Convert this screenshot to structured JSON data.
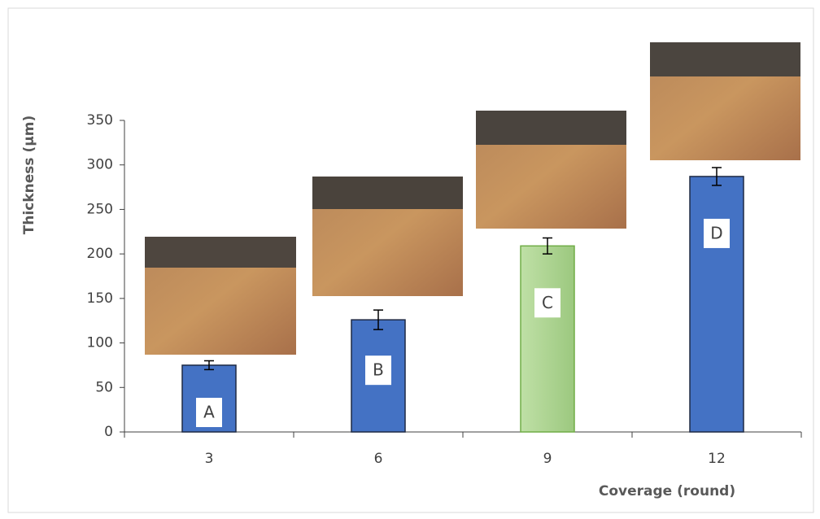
{
  "chart_data": {
    "type": "bar",
    "x_label": "Coverage (round)",
    "y_label": "Thickness (µm)",
    "categories": [
      "3",
      "6",
      "9",
      "12"
    ],
    "values": [
      75,
      126,
      209,
      287
    ],
    "errors": [
      5,
      11,
      9,
      10
    ],
    "colors": [
      "#4472c4",
      "#4472c4",
      "#a9d18e",
      "#4472c4"
    ],
    "bar_labels": [
      "A",
      "B",
      "C",
      "D"
    ],
    "ylim": [
      0,
      350
    ],
    "yticks": [
      0,
      50,
      100,
      150,
      200,
      250,
      300,
      350
    ],
    "grid": false
  }
}
